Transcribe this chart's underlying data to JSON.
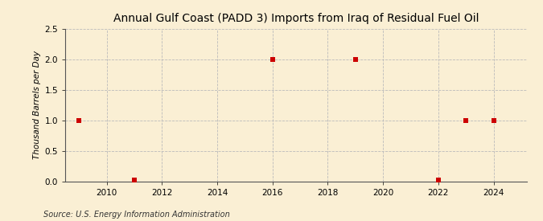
{
  "title": "Annual Gulf Coast (PADD 3) Imports from Iraq of Residual Fuel Oil",
  "ylabel": "Thousand Barrels per Day",
  "source": "Source: U.S. Energy Information Administration",
  "background_color": "#faefd4",
  "data_points": {
    "years": [
      2009,
      2011,
      2016,
      2019,
      2022,
      2023,
      2024
    ],
    "values": [
      1.0,
      0.02,
      2.0,
      2.0,
      0.02,
      1.0,
      1.0
    ]
  },
  "marker_color": "#cc0000",
  "marker_size": 4,
  "xlim": [
    2008.5,
    2025.2
  ],
  "ylim": [
    0.0,
    2.5
  ],
  "xticks": [
    2010,
    2012,
    2014,
    2016,
    2018,
    2020,
    2022,
    2024
  ],
  "yticks": [
    0.0,
    0.5,
    1.0,
    1.5,
    2.0,
    2.5
  ],
  "grid_color": "#bbbbbb",
  "grid_style": "--",
  "title_fontsize": 10,
  "label_fontsize": 7.5,
  "tick_fontsize": 7.5,
  "source_fontsize": 7
}
